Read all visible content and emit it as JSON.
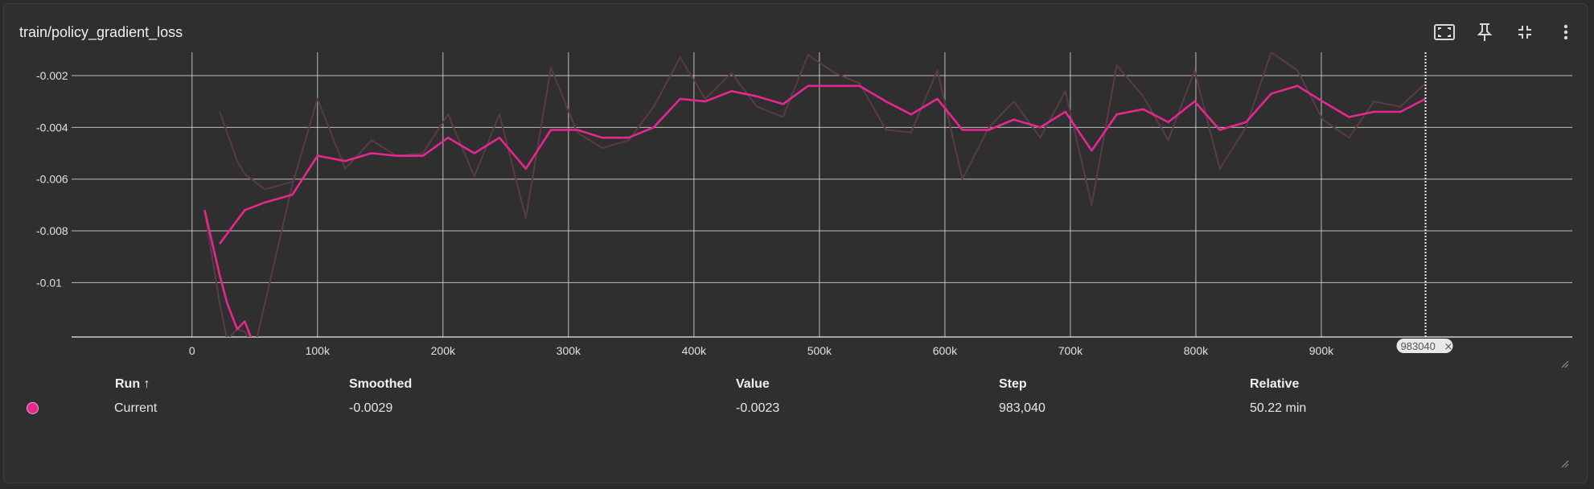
{
  "card": {
    "title": "train/policy_gradient_loss"
  },
  "toolbar": {
    "icons": [
      "fit-domain-icon",
      "pin-icon",
      "collapse-icon",
      "more-vert-icon"
    ]
  },
  "colors": {
    "accent": "#e5278f",
    "raw_line": "#5b3a48",
    "grid": "#d8d8d8",
    "background": "#2f2f2f"
  },
  "chart_data": {
    "type": "line",
    "title": "train/policy_gradient_loss",
    "xlabel": "",
    "ylabel": "",
    "xlim": [
      -96000,
      1100000
    ],
    "ylim": [
      -0.0121,
      -0.0011
    ],
    "grid": true,
    "xticks": [
      0,
      100000,
      200000,
      300000,
      400000,
      500000,
      600000,
      700000,
      800000,
      900000
    ],
    "xtick_labels": [
      "0",
      "100k",
      "200k",
      "300k",
      "400k",
      "500k",
      "600k",
      "700k",
      "800k",
      "900k"
    ],
    "yticks": [
      -0.002,
      -0.004,
      -0.006,
      -0.008,
      -0.01
    ],
    "ytick_labels": [
      "-0.002",
      "-0.004",
      "-0.006",
      "-0.008",
      "-0.01"
    ],
    "cursor_step": 983040,
    "cursor_label": "983040",
    "series": [
      {
        "role": "raw",
        "x": [
          10000,
          22000,
          28000,
          36000,
          42000,
          50000,
          80000,
          100000,
          122000,
          143000,
          163000,
          184000,
          204000,
          225000,
          245000,
          266000,
          286000,
          307000,
          327000,
          348000,
          368000,
          389000,
          409000,
          430000,
          450000,
          471000,
          491000,
          512000,
          532000,
          553000,
          573000,
          594000,
          614000,
          635000,
          655000,
          676000,
          696000,
          717000,
          737000,
          758000,
          778000,
          799000,
          819000,
          840000,
          860000,
          881000,
          901000,
          922000,
          942000,
          963000,
          983040
        ],
        "y": [
          -0.0072,
          -0.0108,
          -0.0122,
          -0.0118,
          -0.0119,
          -0.0125,
          -0.0062,
          -0.0029,
          -0.0056,
          -0.0045,
          -0.0051,
          -0.005,
          -0.0035,
          -0.0059,
          -0.0035,
          -0.0075,
          -0.0017,
          -0.0042,
          -0.0048,
          -0.0045,
          -0.0032,
          -0.0013,
          -0.0029,
          -0.0019,
          -0.0032,
          -0.0036,
          -0.0012,
          -0.0019,
          -0.0023,
          -0.0041,
          -0.0042,
          -0.0018,
          -0.006,
          -0.004,
          -0.003,
          -0.0044,
          -0.0026,
          -0.007,
          -0.0016,
          -0.0028,
          -0.0045,
          -0.0018,
          -0.0056,
          -0.004,
          -0.0011,
          -0.0018,
          -0.0037,
          -0.0044,
          -0.003,
          -0.0032,
          -0.0023
        ]
      },
      {
        "role": "raw-second",
        "x": [
          22000,
          36000,
          42000,
          58000,
          80000
        ],
        "y": [
          -0.0034,
          -0.0053,
          -0.0058,
          -0.0064,
          -0.0061
        ]
      },
      {
        "role": "smoothed",
        "x": [
          10000,
          22000,
          28000,
          36000,
          42000,
          50000
        ],
        "y": [
          -0.0072,
          -0.0097,
          -0.0108,
          -0.0118,
          -0.0115,
          -0.0125
        ]
      },
      {
        "role": "smoothed-second",
        "x": [
          22000,
          42000,
          58000,
          80000,
          100000,
          122000,
          143000,
          163000,
          184000,
          204000,
          225000,
          245000,
          266000,
          286000,
          307000,
          327000,
          348000,
          368000,
          389000,
          409000,
          430000,
          450000,
          471000,
          491000,
          512000,
          532000,
          553000,
          573000,
          594000,
          614000,
          635000,
          655000,
          676000,
          696000,
          717000,
          737000,
          758000,
          778000,
          799000,
          819000,
          840000,
          860000,
          881000,
          901000,
          922000,
          942000,
          963000,
          983040
        ],
        "y": [
          -0.0085,
          -0.0072,
          -0.0069,
          -0.0066,
          -0.0051,
          -0.0053,
          -0.005,
          -0.0051,
          -0.0051,
          -0.0044,
          -0.005,
          -0.0044,
          -0.0056,
          -0.0041,
          -0.0041,
          -0.0044,
          -0.0044,
          -0.004,
          -0.0029,
          -0.003,
          -0.0026,
          -0.0028,
          -0.0031,
          -0.0024,
          -0.0024,
          -0.0024,
          -0.003,
          -0.0035,
          -0.0029,
          -0.0041,
          -0.0041,
          -0.0037,
          -0.004,
          -0.0034,
          -0.0049,
          -0.0035,
          -0.0033,
          -0.0038,
          -0.003,
          -0.0041,
          -0.0038,
          -0.0027,
          -0.0024,
          -0.003,
          -0.0036,
          -0.0034,
          -0.0034,
          -0.0029
        ]
      }
    ]
  },
  "table": {
    "headers": {
      "run": "Run ↑",
      "smoothed": "Smoothed",
      "value": "Value",
      "step": "Step",
      "relative": "Relative"
    },
    "rows": [
      {
        "run": "Current",
        "smoothed": "-0.0029",
        "value": "-0.0023",
        "step": "983,040",
        "relative": "50.22 min"
      }
    ]
  }
}
